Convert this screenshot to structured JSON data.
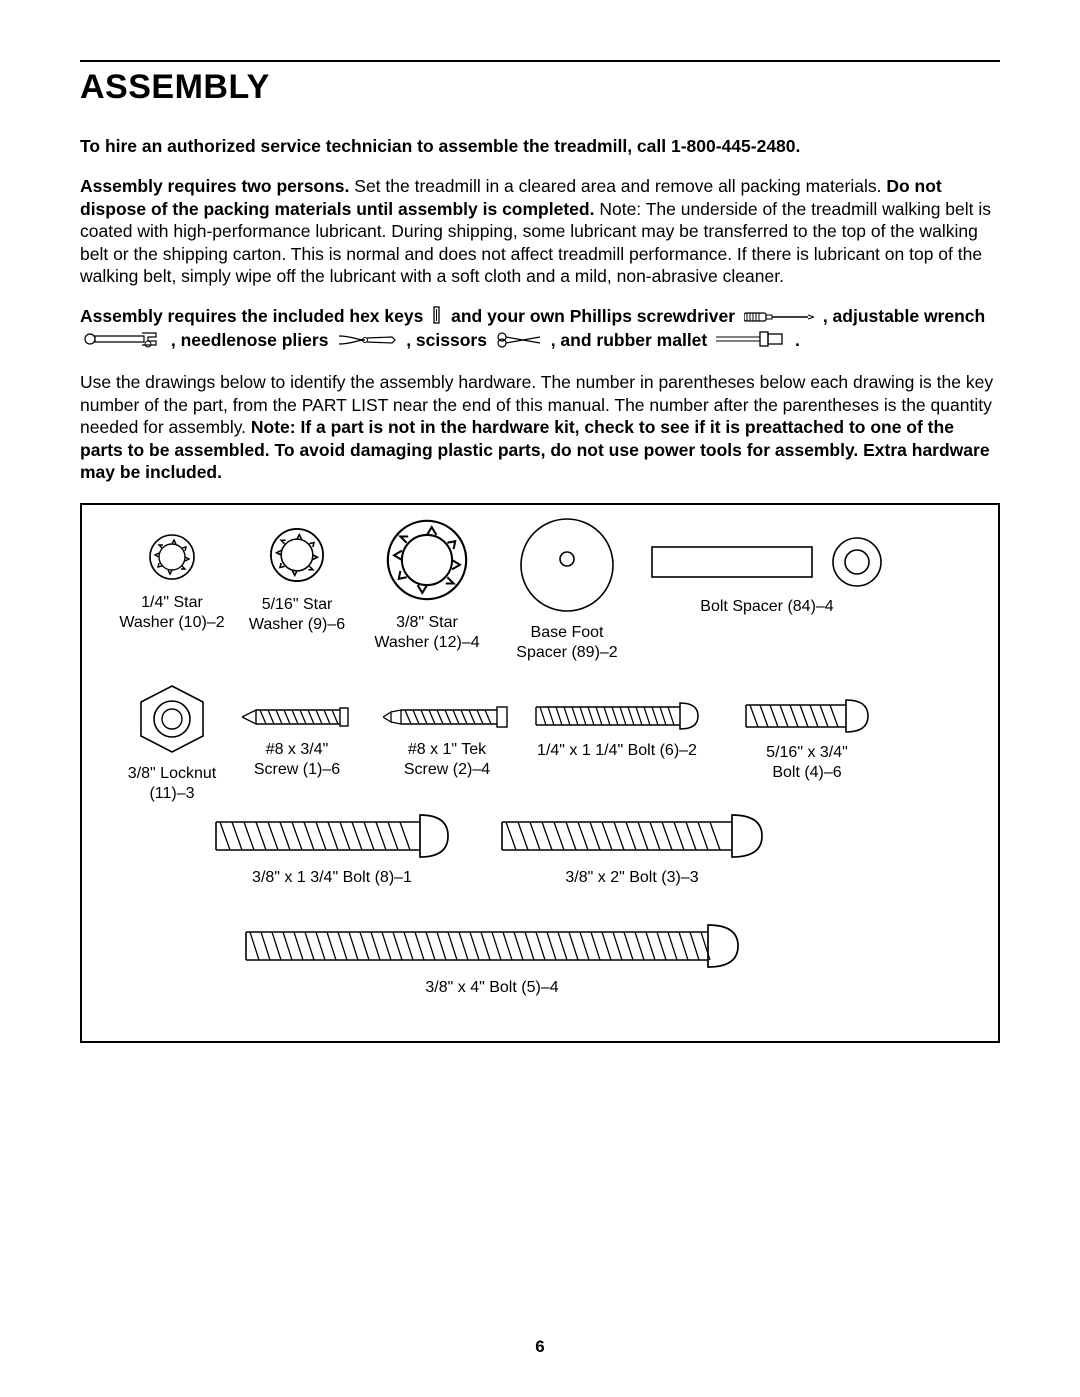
{
  "page": {
    "title": "ASSEMBLY",
    "page_number": "6",
    "text_color": "#000000",
    "bg_color": "#ffffff",
    "font_family": "Arial, Helvetica, sans-serif",
    "title_fontsize": 34,
    "body_fontsize": 17.5,
    "line_height": 1.28
  },
  "intro": {
    "line1_bold": "To hire an authorized service technician to assemble the treadmill, call 1-800-445-2480.",
    "para2_b1": "Assembly requires two persons.",
    "para2_mid": " Set the treadmill in a cleared area and remove all packing materials. ",
    "para2_b2": "Do not dispose of the packing materials until assembly is completed.",
    "para2_tail": " Note: The underside of the treadmill walking belt is coated with high-performance lubricant. During shipping, some lubricant may be transferred to the top of the walking belt or the shipping carton. This is normal and does not affect treadmill performance. If there is lubricant on top of the walking belt, simply wipe off the lubricant with a soft cloth and a mild, non-abrasive cleaner.",
    "tools_t1": "Assembly requires the included hex keys",
    "tools_t2": "and your own Phillips screwdriver",
    "tools_t3": ", adjustable wrench",
    "tools_t4": ", needlenose pliers",
    "tools_t5": ", scissors",
    "tools_t6": ", and rubber mallet",
    "tools_period": ".",
    "para4_plain": "Use the drawings below to identify the assembly hardware. The number in parentheses below each drawing is the key number of the part, from the PART LIST near the end of this manual. The number after the parentheses is the quantity needed for assembly. ",
    "para4_bold": "Note: If a part is not in the hardware kit, check to see if it is preattached to one of the parts to be assembled. To avoid damaging plastic parts, do not use power tools for assembly. Extra hardware may be included."
  },
  "hardware": {
    "star_washer_1_4": {
      "l1": "1/4\" Star",
      "l2": "Washer (10)–2"
    },
    "star_washer_5_16": {
      "l1": "5/16\" Star",
      "l2": "Washer (9)–6"
    },
    "star_washer_3_8": {
      "l1": "3/8\" Star",
      "l2": "Washer (12)–4"
    },
    "base_foot_spacer": {
      "l1": "Base Foot",
      "l2": "Spacer (89)–2"
    },
    "bolt_spacer": {
      "l1": "Bolt Spacer (84)–4"
    },
    "locknut_3_8": {
      "l1": "3/8\" Locknut",
      "l2": "(11)–3"
    },
    "screw_8_34": {
      "l1": "#8 x 3/4\"",
      "l2": "Screw (1)–6"
    },
    "screw_8_1_tek": {
      "l1": "#8 x 1\" Tek",
      "l2": "Screw (2)–4"
    },
    "bolt_1_4_1_1_4": {
      "l1": "1/4\" x 1 1/4\" Bolt (6)–2"
    },
    "bolt_5_16_3_4": {
      "l1": "5/16\" x 3/4\"",
      "l2": "Bolt (4)–6"
    },
    "bolt_3_8_1_3_4": {
      "l1": "3/8\" x 1 3/4\" Bolt (8)–1"
    },
    "bolt_3_8_2": {
      "l1": "3/8\" x 2\" Bolt (3)–3"
    },
    "bolt_3_8_4": {
      "l1": "3/8\" x 4\" Bolt (5)–4"
    }
  }
}
